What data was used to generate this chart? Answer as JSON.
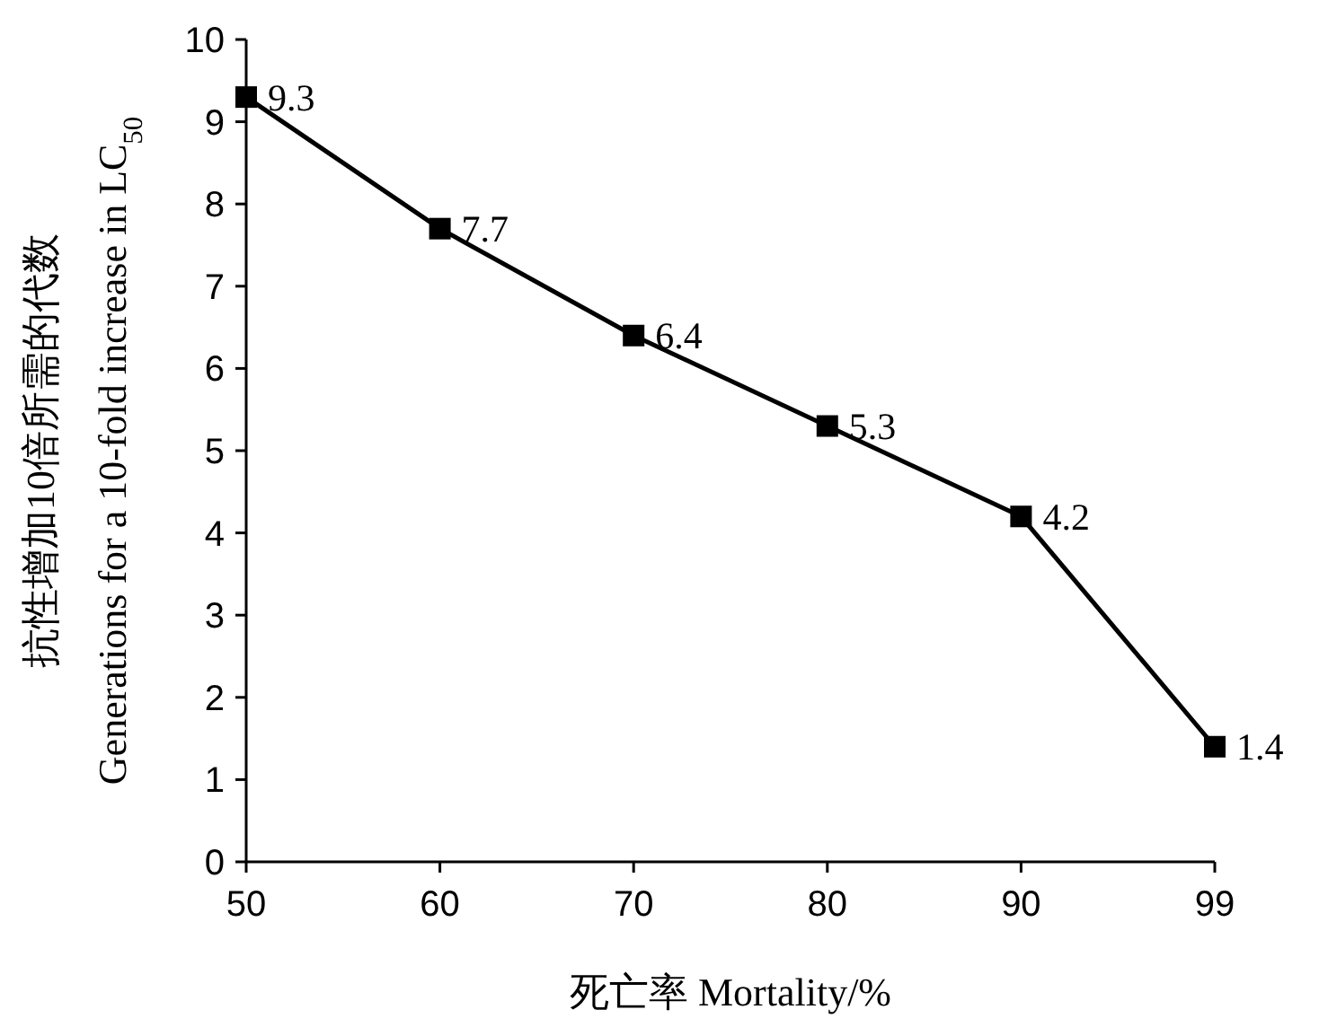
{
  "chart_data": {
    "type": "line",
    "xlabel": "死亡率 Mortality/%",
    "ylabel": "抗性增加10倍所需的代数\nGenerations for a 10-fold increase in LC$_{50}$",
    "categories": [
      "50",
      "60",
      "70",
      "80",
      "90",
      "99"
    ],
    "series": [
      {
        "color": "#000000",
        "values": [
          9.3,
          7.7,
          6.4,
          5.3,
          4.2,
          1.4
        ]
      }
    ],
    "ylim": [
      0,
      10
    ],
    "yticks": [
      0,
      1,
      2,
      3,
      4,
      5,
      6,
      7,
      8,
      9,
      10
    ],
    "marker": "square",
    "line_style": "solid",
    "data_labels": true,
    "grid": false
  }
}
